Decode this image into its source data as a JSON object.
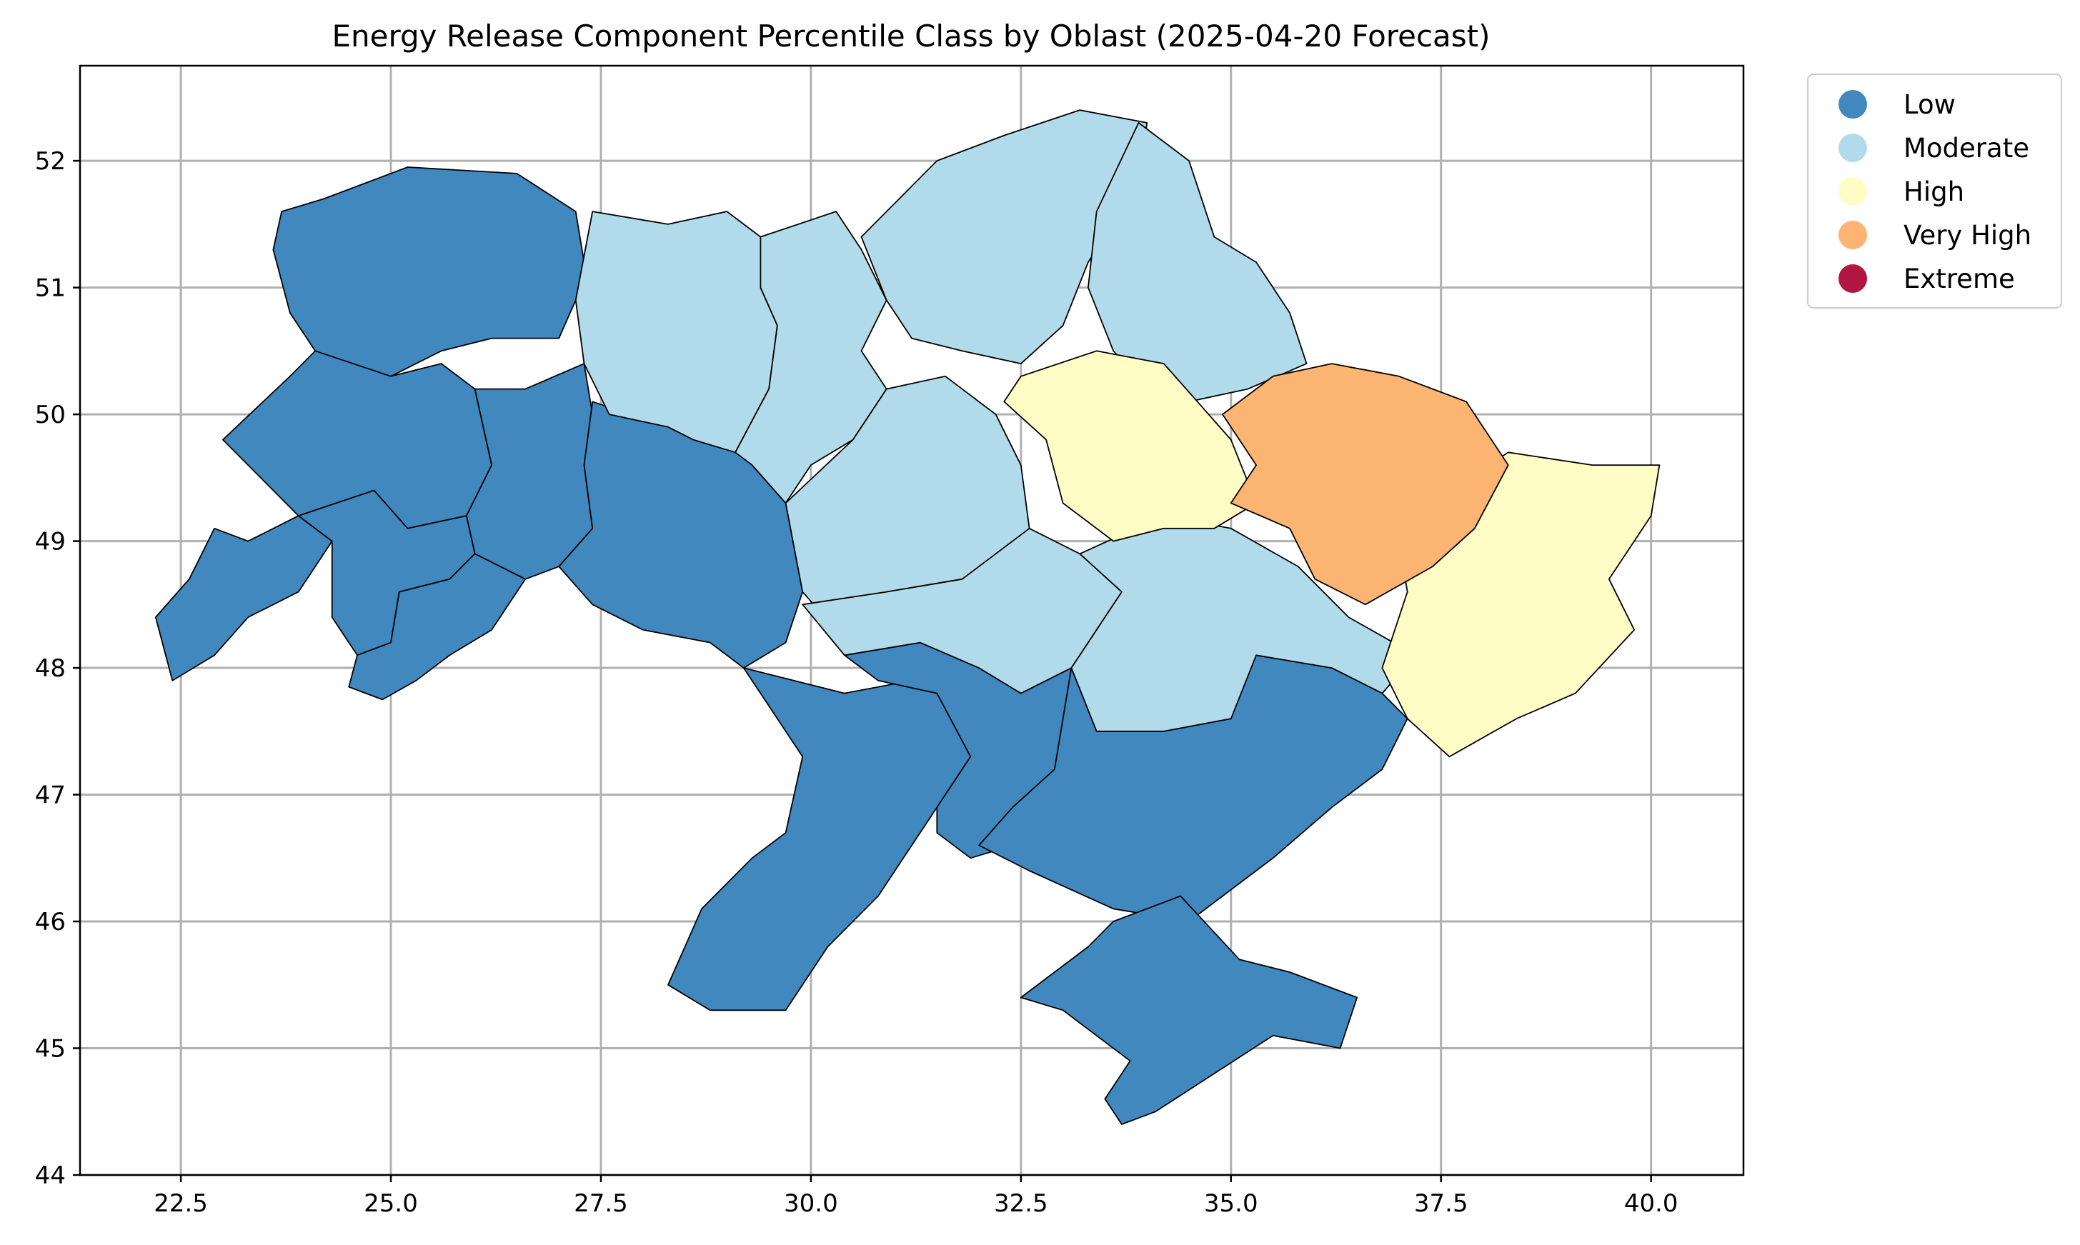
{
  "chart_data": {
    "type": "choropleth",
    "title": "Energy Release Component Percentile Class by Oblast (2025-04-20 Forecast)",
    "xlabel": "",
    "ylabel": "",
    "xlim": [
      21.3,
      41.1
    ],
    "ylim": [
      44.0,
      52.75
    ],
    "x_ticks": [
      "22.5",
      "25.0",
      "27.5",
      "30.0",
      "32.5",
      "35.0",
      "37.5",
      "40.0"
    ],
    "y_ticks": [
      "44",
      "45",
      "46",
      "47",
      "48",
      "49",
      "50",
      "51",
      "52"
    ],
    "grid": true,
    "legend_position": "outside upper right",
    "classes": [
      {
        "label": "Low",
        "color": "#4088bd"
      },
      {
        "label": "Moderate",
        "color": "#b1dbea"
      },
      {
        "label": "High",
        "color": "#fffcc6"
      },
      {
        "label": "Very High",
        "color": "#fcb472"
      },
      {
        "label": "Extreme",
        "color": "#b01740"
      }
    ],
    "regions": [
      {
        "class": "Low",
        "boundary": [
          [
            27.2,
            51.6
          ],
          [
            26.5,
            51.9
          ],
          [
            25.2,
            51.95
          ],
          [
            24.2,
            51.7
          ],
          [
            23.7,
            51.6
          ],
          [
            23.6,
            51.3
          ],
          [
            23.8,
            50.8
          ],
          [
            24.1,
            50.5
          ],
          [
            24.3,
            50.3
          ],
          [
            25.0,
            50.3
          ],
          [
            25.6,
            50.5
          ],
          [
            26.2,
            50.6
          ],
          [
            27.0,
            50.6
          ],
          [
            27.2,
            50.9
          ],
          [
            27.3,
            51.2
          ]
        ]
      },
      {
        "class": "Low",
        "boundary": [
          [
            24.1,
            50.5
          ],
          [
            25.0,
            50.3
          ],
          [
            25.6,
            50.4
          ],
          [
            26.0,
            50.2
          ],
          [
            26.2,
            49.6
          ],
          [
            25.9,
            49.2
          ],
          [
            25.2,
            49.1
          ],
          [
            24.8,
            49.4
          ],
          [
            23.9,
            49.2
          ],
          [
            23.3,
            49.6
          ],
          [
            23.0,
            49.8
          ],
          [
            23.8,
            50.3
          ]
        ]
      },
      {
        "class": "Low",
        "boundary": [
          [
            26.0,
            50.2
          ],
          [
            26.6,
            50.2
          ],
          [
            27.3,
            50.4
          ],
          [
            27.4,
            50.0
          ],
          [
            27.3,
            49.6
          ],
          [
            27.4,
            49.1
          ],
          [
            27.0,
            48.8
          ],
          [
            26.6,
            48.7
          ],
          [
            26.0,
            48.9
          ],
          [
            25.9,
            49.2
          ],
          [
            26.2,
            49.6
          ]
        ]
      },
      {
        "class": "Low",
        "boundary": [
          [
            22.9,
            49.1
          ],
          [
            23.3,
            49.0
          ],
          [
            23.9,
            49.2
          ],
          [
            24.3,
            49.0
          ],
          [
            23.9,
            48.6
          ],
          [
            23.3,
            48.4
          ],
          [
            22.9,
            48.1
          ],
          [
            22.4,
            47.9
          ],
          [
            22.2,
            48.4
          ],
          [
            22.6,
            48.7
          ]
        ]
      },
      {
        "class": "Low",
        "boundary": [
          [
            23.9,
            49.2
          ],
          [
            24.8,
            49.4
          ],
          [
            25.2,
            49.1
          ],
          [
            25.9,
            49.2
          ],
          [
            26.0,
            48.9
          ],
          [
            25.7,
            48.7
          ],
          [
            25.1,
            48.6
          ],
          [
            25.0,
            48.2
          ],
          [
            24.6,
            48.1
          ],
          [
            24.3,
            48.4
          ],
          [
            24.3,
            49.0
          ]
        ]
      },
      {
        "class": "Low",
        "boundary": [
          [
            24.6,
            48.1
          ],
          [
            25.0,
            48.2
          ],
          [
            25.1,
            48.6
          ],
          [
            25.7,
            48.7
          ],
          [
            26.0,
            48.9
          ],
          [
            26.6,
            48.7
          ],
          [
            26.2,
            48.3
          ],
          [
            25.7,
            48.1
          ],
          [
            25.3,
            47.9
          ],
          [
            24.9,
            47.75
          ],
          [
            24.5,
            47.85
          ]
        ]
      },
      {
        "class": "Low",
        "boundary": [
          [
            27.4,
            50.1
          ],
          [
            28.3,
            49.9
          ],
          [
            29.0,
            49.9
          ],
          [
            29.3,
            49.6
          ],
          [
            29.7,
            49.3
          ],
          [
            29.9,
            48.6
          ],
          [
            29.7,
            48.2
          ],
          [
            29.2,
            48.0
          ],
          [
            28.8,
            48.2
          ],
          [
            28.0,
            48.3
          ],
          [
            27.4,
            48.5
          ],
          [
            27.0,
            48.8
          ],
          [
            27.4,
            49.1
          ],
          [
            27.3,
            49.6
          ]
        ]
      },
      {
        "class": "Low",
        "boundary": [
          [
            29.2,
            48.0
          ],
          [
            30.4,
            47.8
          ],
          [
            31.2,
            47.9
          ],
          [
            31.8,
            47.8
          ],
          [
            31.9,
            47.3
          ],
          [
            31.5,
            46.9
          ],
          [
            31.2,
            46.6
          ],
          [
            30.8,
            46.2
          ],
          [
            30.2,
            45.8
          ],
          [
            29.7,
            45.3
          ],
          [
            28.8,
            45.3
          ],
          [
            28.3,
            45.5
          ],
          [
            28.7,
            46.1
          ],
          [
            29.3,
            46.5
          ],
          [
            29.7,
            46.7
          ],
          [
            29.9,
            47.3
          ]
        ]
      },
      {
        "class": "Low",
        "boundary": [
          [
            30.4,
            48.1
          ],
          [
            31.3,
            48.2
          ],
          [
            32.0,
            48.0
          ],
          [
            32.5,
            47.8
          ],
          [
            33.1,
            48.0
          ],
          [
            33.4,
            47.5
          ],
          [
            32.9,
            47.0
          ],
          [
            32.4,
            46.6
          ],
          [
            31.9,
            46.5
          ],
          [
            31.5,
            46.7
          ],
          [
            31.5,
            46.9
          ],
          [
            31.9,
            47.3
          ],
          [
            31.5,
            47.8
          ],
          [
            30.8,
            47.9
          ]
        ]
      },
      {
        "class": "Low",
        "boundary": [
          [
            33.1,
            48.0
          ],
          [
            33.4,
            47.5
          ],
          [
            34.2,
            47.5
          ],
          [
            35.0,
            47.6
          ],
          [
            35.2,
            48.0
          ],
          [
            35.3,
            48.1
          ],
          [
            36.2,
            48.0
          ],
          [
            36.8,
            47.8
          ],
          [
            37.1,
            47.6
          ],
          [
            36.8,
            47.2
          ],
          [
            36.2,
            46.9
          ],
          [
            35.5,
            46.5
          ],
          [
            34.9,
            46.2
          ],
          [
            34.5,
            46.0
          ],
          [
            33.6,
            46.1
          ],
          [
            32.6,
            46.4
          ],
          [
            32.0,
            46.6
          ],
          [
            32.4,
            46.9
          ],
          [
            32.9,
            47.2
          ]
        ]
      },
      {
        "class": "Low",
        "boundary": [
          [
            33.6,
            46.0
          ],
          [
            34.4,
            46.2
          ],
          [
            35.1,
            45.7
          ],
          [
            35.7,
            45.6
          ],
          [
            36.5,
            45.4
          ],
          [
            36.3,
            45.0
          ],
          [
            35.5,
            45.1
          ],
          [
            34.8,
            44.8
          ],
          [
            34.1,
            44.5
          ],
          [
            33.7,
            44.4
          ],
          [
            33.5,
            44.6
          ],
          [
            33.8,
            44.9
          ],
          [
            33.0,
            45.3
          ],
          [
            32.5,
            45.4
          ],
          [
            33.3,
            45.8
          ]
        ]
      },
      {
        "class": "Moderate",
        "boundary": [
          [
            27.4,
            51.6
          ],
          [
            28.3,
            51.5
          ],
          [
            29.0,
            51.6
          ],
          [
            29.4,
            51.4
          ],
          [
            29.4,
            51.0
          ],
          [
            29.6,
            50.7
          ],
          [
            29.5,
            50.2
          ],
          [
            29.1,
            49.7
          ],
          [
            28.6,
            49.8
          ],
          [
            28.3,
            49.9
          ],
          [
            27.6,
            50.0
          ],
          [
            27.3,
            50.4
          ],
          [
            27.2,
            50.9
          ]
        ]
      },
      {
        "class": "Moderate",
        "boundary": [
          [
            29.4,
            51.4
          ],
          [
            30.3,
            51.6
          ],
          [
            30.6,
            51.3
          ],
          [
            30.9,
            50.9
          ],
          [
            30.6,
            50.5
          ],
          [
            30.9,
            50.2
          ],
          [
            30.5,
            49.8
          ],
          [
            30.0,
            49.6
          ],
          [
            29.7,
            49.3
          ],
          [
            29.3,
            49.6
          ],
          [
            29.1,
            49.7
          ],
          [
            29.5,
            50.2
          ],
          [
            29.6,
            50.7
          ],
          [
            29.4,
            51.0
          ]
        ]
      },
      {
        "class": "Moderate",
        "boundary": [
          [
            30.6,
            51.4
          ],
          [
            31.5,
            52.0
          ],
          [
            32.3,
            52.2
          ],
          [
            33.2,
            52.4
          ],
          [
            34.0,
            52.3
          ],
          [
            33.9,
            51.8
          ],
          [
            33.3,
            51.2
          ],
          [
            33.0,
            50.7
          ],
          [
            32.5,
            50.4
          ],
          [
            31.8,
            50.5
          ],
          [
            31.2,
            50.6
          ],
          [
            30.9,
            50.9
          ]
        ]
      },
      {
        "class": "Moderate",
        "boundary": [
          [
            33.9,
            52.3
          ],
          [
            34.5,
            52.0
          ],
          [
            34.8,
            51.4
          ],
          [
            35.3,
            51.2
          ],
          [
            35.7,
            50.8
          ],
          [
            35.9,
            50.4
          ],
          [
            35.2,
            50.2
          ],
          [
            34.5,
            50.1
          ],
          [
            34.0,
            50.2
          ],
          [
            33.6,
            50.5
          ],
          [
            33.3,
            51.0
          ],
          [
            33.4,
            51.6
          ]
        ]
      },
      {
        "class": "Moderate",
        "boundary": [
          [
            29.7,
            49.3
          ],
          [
            30.5,
            49.8
          ],
          [
            30.9,
            50.2
          ],
          [
            31.6,
            50.3
          ],
          [
            32.2,
            50.0
          ],
          [
            32.5,
            49.6
          ],
          [
            32.6,
            49.1
          ],
          [
            32.3,
            48.8
          ],
          [
            31.8,
            48.7
          ],
          [
            30.9,
            48.6
          ],
          [
            30.3,
            48.3
          ],
          [
            29.9,
            48.6
          ]
        ]
      },
      {
        "class": "Moderate",
        "boundary": [
          [
            29.9,
            48.5
          ],
          [
            30.9,
            48.6
          ],
          [
            31.8,
            48.7
          ],
          [
            32.6,
            49.1
          ],
          [
            33.2,
            48.9
          ],
          [
            33.7,
            48.6
          ],
          [
            33.4,
            48.3
          ],
          [
            33.1,
            48.0
          ],
          [
            32.5,
            47.8
          ],
          [
            32.0,
            48.0
          ],
          [
            31.3,
            48.2
          ],
          [
            30.4,
            48.1
          ]
        ]
      },
      {
        "class": "Moderate",
        "boundary": [
          [
            33.2,
            48.9
          ],
          [
            34.2,
            49.2
          ],
          [
            35.0,
            49.1
          ],
          [
            35.8,
            48.8
          ],
          [
            36.4,
            48.4
          ],
          [
            37.2,
            48.1
          ],
          [
            36.8,
            47.8
          ],
          [
            36.2,
            48.0
          ],
          [
            35.3,
            48.1
          ],
          [
            35.0,
            47.6
          ],
          [
            34.2,
            47.5
          ],
          [
            33.4,
            47.5
          ],
          [
            33.1,
            48.0
          ],
          [
            33.4,
            48.3
          ],
          [
            33.7,
            48.6
          ]
        ]
      },
      {
        "class": "High",
        "boundary": [
          [
            32.5,
            50.3
          ],
          [
            33.4,
            50.5
          ],
          [
            34.2,
            50.4
          ],
          [
            34.6,
            50.1
          ],
          [
            35.0,
            49.8
          ],
          [
            35.3,
            49.3
          ],
          [
            34.8,
            49.1
          ],
          [
            34.2,
            49.1
          ],
          [
            33.6,
            49.0
          ],
          [
            33.0,
            49.3
          ],
          [
            32.8,
            49.8
          ],
          [
            32.3,
            50.1
          ]
        ]
      },
      {
        "class": "High",
        "boundary": [
          [
            37.0,
            49.0
          ],
          [
            37.6,
            49.4
          ],
          [
            38.3,
            49.7
          ],
          [
            39.3,
            49.6
          ],
          [
            40.1,
            49.6
          ],
          [
            40.0,
            49.2
          ],
          [
            39.5,
            48.7
          ],
          [
            39.8,
            48.3
          ],
          [
            39.1,
            47.8
          ],
          [
            38.4,
            47.6
          ],
          [
            37.6,
            47.3
          ],
          [
            37.1,
            47.6
          ],
          [
            36.8,
            48.0
          ],
          [
            37.1,
            48.6
          ]
        ]
      },
      {
        "class": "Very High",
        "boundary": [
          [
            34.9,
            50.0
          ],
          [
            35.5,
            50.3
          ],
          [
            36.2,
            50.4
          ],
          [
            37.0,
            50.3
          ],
          [
            37.8,
            50.1
          ],
          [
            38.3,
            49.6
          ],
          [
            37.9,
            49.1
          ],
          [
            37.4,
            48.8
          ],
          [
            36.6,
            48.5
          ],
          [
            36.0,
            48.7
          ],
          [
            35.7,
            49.1
          ],
          [
            35.0,
            49.3
          ],
          [
            35.3,
            49.6
          ]
        ]
      }
    ]
  }
}
